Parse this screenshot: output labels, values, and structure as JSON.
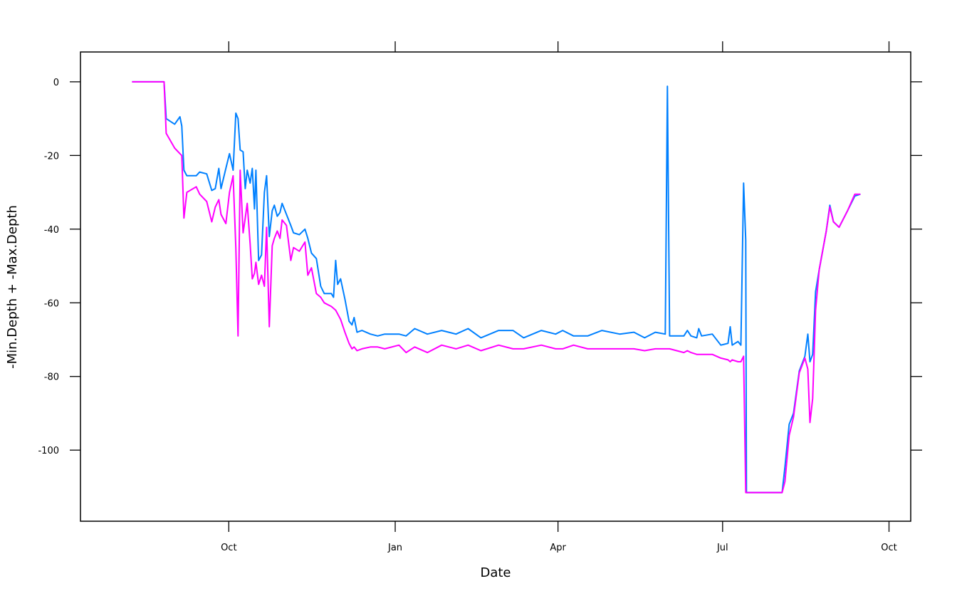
{
  "chart_data": {
    "type": "line",
    "xlabel": "Date",
    "ylabel": "-Min.Depth + -Max.Depth",
    "x": [
      -53.5,
      -35.8,
      -34.6,
      -29.9,
      -27,
      -26,
      -24.8,
      -23.2,
      -18,
      -16.1,
      -12.2,
      -9.4,
      -7.5,
      -5.5,
      -4.3,
      -1.6,
      0.4,
      2.4,
      3.9,
      5.1,
      6.3,
      7.9,
      9.1,
      10.2,
      11.8,
      13,
      14.2,
      15,
      16.5,
      18.1,
      19.7,
      20.9,
      22.4,
      24,
      25.2,
      26.8,
      28.3,
      29.5,
      31.9,
      34.3,
      35.8,
      39,
      42.1,
      43.7,
      45.7,
      48.4,
      50.8,
      52.8,
      56.7,
      57.9,
      59.1,
      60.2,
      61.8,
      64.2,
      66.5,
      68.1,
      69.3,
      70.9,
      73.6,
      78.3,
      82.3,
      86.2,
      94.1,
      98,
      102.8,
      109.8,
      117.7,
      125.6,
      132.3,
      139.4,
      149.2,
      157.1,
      163,
      172.8,
      180.7,
      184.6,
      190.6,
      198.4,
      206.3,
      216.1,
      224,
      229.9,
      235.8,
      241.3,
      242.5,
      243.7,
      251.6,
      253.5,
      255.5,
      258.7,
      259.8,
      261.4,
      267.3,
      272,
      276,
      277.2,
      278.3,
      281.5,
      283.1,
      284.6,
      285.8,
      286.2,
      305.9,
      307.5,
      309.8,
      312.2,
      315.4,
      318.5,
      320.1,
      321.3,
      322.8,
      324.4,
      326.4,
      330.3,
      332.3,
      334.3,
      337.4,
      342.1,
      346.1,
      349.2
    ],
    "series": [
      {
        "color": "#0080ff",
        "values": [
          0,
          0,
          -10,
          -11.5,
          -9.5,
          -12,
          -24,
          -25.5,
          -25.5,
          -24.5,
          -25,
          -29.5,
          -29,
          -23.5,
          -29,
          -23.5,
          -19.5,
          -24,
          -8.5,
          -10,
          -18.5,
          -19,
          -29,
          -24,
          -27.5,
          -23.5,
          -34.5,
          -24,
          -48.5,
          -47,
          -30,
          -25.5,
          -42,
          -35,
          -33.5,
          -36.5,
          -35.5,
          -33,
          -36,
          -39,
          -41,
          -41.5,
          -40,
          -42.5,
          -46.5,
          -48,
          -55.5,
          -57.5,
          -57.5,
          -58.5,
          -48.5,
          -55,
          -53.5,
          -59,
          -65,
          -66,
          -64,
          -68,
          -67.5,
          -68.5,
          -69,
          -68.5,
          -68.5,
          -69,
          -67,
          -68.5,
          -67.5,
          -68.5,
          -67,
          -69.5,
          -67.5,
          -67.5,
          -69.5,
          -67.5,
          -68.5,
          -67.5,
          -69,
          -69,
          -67.5,
          -68.5,
          -68,
          -69.5,
          -68,
          -68.5,
          -1.2,
          -69,
          -69,
          -67.5,
          -69,
          -69.5,
          -67,
          -69,
          -68.5,
          -71.5,
          -71,
          -66.5,
          -71.5,
          -70.5,
          -71.5,
          -27.5,
          -43,
          -111.5,
          -111.5,
          -104.5,
          -93,
          -90,
          -78.5,
          -74.5,
          -68.5,
          -76,
          -74,
          -57,
          -51,
          -40.5,
          -33.5,
          -38,
          -39.5,
          -35,
          -31,
          -30.5
        ]
      },
      {
        "color": "#ff00ff",
        "values": [
          0,
          0,
          -14,
          -18,
          -19.5,
          -20,
          -37,
          -30,
          -28.5,
          -30.5,
          -32.5,
          -38,
          -34,
          -32,
          -36,
          -38.5,
          -30,
          -25.5,
          -45,
          -69,
          -24,
          -41,
          -37,
          -33,
          -44,
          -53.5,
          -52,
          -49,
          -55,
          -52.5,
          -55.5,
          -39.5,
          -66.5,
          -44.5,
          -42.5,
          -40.5,
          -42.5,
          -37.5,
          -39,
          -48.5,
          -45,
          -46,
          -43.5,
          -52.5,
          -50.5,
          -57.5,
          -58.5,
          -60,
          -61,
          -61.5,
          -62,
          -63,
          -64.5,
          -68,
          -71,
          -72.5,
          -72,
          -73,
          -72.5,
          -72,
          -72,
          -72.5,
          -71.5,
          -73.5,
          -72,
          -73.5,
          -71.5,
          -72.5,
          -71.5,
          -73,
          -71.5,
          -72.5,
          -72.5,
          -71.5,
          -72.5,
          -72.5,
          -71.5,
          -72.5,
          -72.5,
          -72.5,
          -72.5,
          -73,
          -72.5,
          -72.5,
          -72.5,
          -72.5,
          -73.5,
          -73,
          -73.5,
          -74,
          -74,
          -74,
          -74,
          -75,
          -75.5,
          -76,
          -75.5,
          -76,
          -76,
          -74.5,
          -111.5,
          -111.5,
          -111.5,
          -108.5,
          -96,
          -91,
          -79,
          -75,
          -78,
          -92.5,
          -86,
          -62,
          -51,
          -40.5,
          -34,
          -38,
          -39.5,
          -35,
          -30.5,
          -30.5
        ]
      }
    ],
    "xlim": [
      -82,
      377
    ],
    "xticks": [
      {
        "value": 0,
        "label": "Oct"
      },
      {
        "value": 92,
        "label": "Jan"
      },
      {
        "value": 182,
        "label": "Apr"
      },
      {
        "value": 273,
        "label": "Jul"
      },
      {
        "value": 365,
        "label": "Oct"
      }
    ],
    "ylim": [
      -119.3,
      8.1
    ],
    "yticks": [
      0,
      -20,
      -40,
      -60,
      -80,
      -100
    ]
  }
}
